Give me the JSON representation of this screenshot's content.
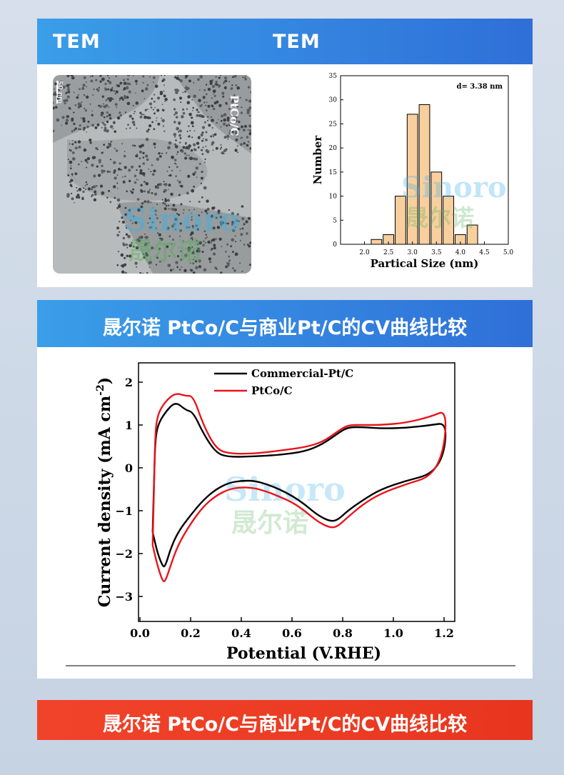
{
  "tem_section": {
    "left_label": "TEM",
    "right_label": "TEM",
    "image_label": "PtCo/C",
    "scale_bar_label": "50 nm"
  },
  "watermark": {
    "text": "Sinoro",
    "subtext": "晟尔诺"
  },
  "cv_section": {
    "title": "晟尔诺 PtCo/C与商业Pt/C的CV曲线比较"
  },
  "footer": {
    "title": "晟尔诺 PtCo/C与商业Pt/C的CV曲线比较"
  },
  "colors": {
    "blue_banner": "#2f6fd8",
    "red_banner": "#e8361e",
    "histogram_bar": "#f9cf9e",
    "commercial_line": "#000000",
    "ptco_line": "#e8141c"
  },
  "chart_data": [
    {
      "type": "bar",
      "title": "",
      "annotation": "d= 3.38 nm",
      "xlabel": "Partical Size (nm)",
      "ylabel": "Number",
      "xlim": [
        1.5,
        5.0
      ],
      "ylim": [
        0,
        35
      ],
      "x_ticks": [
        "2.0",
        "2.5",
        "3.0",
        "3.5",
        "4.0",
        "4.5",
        "5.0"
      ],
      "y_ticks": [
        "0",
        "5",
        "10",
        "15",
        "20",
        "25",
        "30",
        "35"
      ],
      "bin_width": 0.25,
      "x": [
        2.125,
        2.375,
        2.625,
        2.875,
        3.125,
        3.375,
        3.625,
        3.875,
        4.125,
        4.375
      ],
      "values": [
        1,
        2,
        10,
        27,
        29,
        15,
        10,
        2,
        4,
        0
      ],
      "bars_x": [
        2.25,
        2.5,
        2.75,
        3.0,
        3.25,
        3.5,
        3.75,
        4.0,
        4.25,
        4.5
      ],
      "bars_values": [
        1,
        2,
        10,
        27,
        29,
        15,
        10,
        2,
        4
      ]
    },
    {
      "type": "line",
      "title": "",
      "xlabel": "Potential (V.RHE)",
      "ylabel": "Current density",
      "ylabel_unit": "(mA cm",
      "ylabel_exp": "-2",
      "ylabel_close": ")",
      "xlim": [
        0.0,
        1.2
      ],
      "ylim": [
        -3.5,
        2.5
      ],
      "x_ticks": [
        "0.0",
        "0.2",
        "0.4",
        "0.6",
        "0.8",
        "1.0",
        "1.2"
      ],
      "y_ticks": [
        "2",
        "1",
        "0",
        "−1",
        "−2",
        "−3"
      ],
      "legend_position": "top-left",
      "series": [
        {
          "name": "Commercial-Pt/C",
          "color": "#000000",
          "points": [
            [
              0.05,
              -1.5
            ],
            [
              0.07,
              -2.0
            ],
            [
              0.09,
              -2.3
            ],
            [
              0.1,
              -2.3
            ],
            [
              0.12,
              -1.9
            ],
            [
              0.15,
              -1.5
            ],
            [
              0.2,
              -1.1
            ],
            [
              0.25,
              -0.75
            ],
            [
              0.3,
              -0.5
            ],
            [
              0.35,
              -0.35
            ],
            [
              0.4,
              -0.3
            ],
            [
              0.45,
              -0.3
            ],
            [
              0.5,
              -0.38
            ],
            [
              0.55,
              -0.5
            ],
            [
              0.6,
              -0.65
            ],
            [
              0.65,
              -0.85
            ],
            [
              0.7,
              -1.1
            ],
            [
              0.75,
              -1.25
            ],
            [
              0.78,
              -1.22
            ],
            [
              0.82,
              -1.0
            ],
            [
              0.88,
              -0.75
            ],
            [
              0.95,
              -0.5
            ],
            [
              1.05,
              -0.3
            ],
            [
              1.15,
              -0.15
            ],
            [
              1.2,
              0.3
            ],
            [
              1.21,
              1.05
            ],
            [
              1.15,
              1.0
            ],
            [
              1.05,
              0.93
            ],
            [
              0.95,
              0.92
            ],
            [
              0.88,
              0.95
            ],
            [
              0.82,
              0.95
            ],
            [
              0.78,
              0.8
            ],
            [
              0.72,
              0.55
            ],
            [
              0.65,
              0.38
            ],
            [
              0.55,
              0.3
            ],
            [
              0.45,
              0.27
            ],
            [
              0.35,
              0.25
            ],
            [
              0.3,
              0.35
            ],
            [
              0.25,
              0.8
            ],
            [
              0.21,
              1.3
            ],
            [
              0.18,
              1.35
            ],
            [
              0.14,
              1.55
            ],
            [
              0.1,
              1.3
            ],
            [
              0.07,
              1.0
            ],
            [
              0.06,
              0.6
            ],
            [
              0.055,
              -0.5
            ],
            [
              0.05,
              -1.5
            ]
          ]
        },
        {
          "name": "PtCo/C",
          "color": "#e8141c",
          "points": [
            [
              0.05,
              -1.8
            ],
            [
              0.07,
              -2.3
            ],
            [
              0.09,
              -2.65
            ],
            [
              0.1,
              -2.65
            ],
            [
              0.12,
              -2.3
            ],
            [
              0.15,
              -1.8
            ],
            [
              0.2,
              -1.3
            ],
            [
              0.25,
              -0.9
            ],
            [
              0.3,
              -0.65
            ],
            [
              0.35,
              -0.5
            ],
            [
              0.4,
              -0.45
            ],
            [
              0.45,
              -0.47
            ],
            [
              0.5,
              -0.55
            ],
            [
              0.55,
              -0.67
            ],
            [
              0.6,
              -0.8
            ],
            [
              0.65,
              -1.0
            ],
            [
              0.7,
              -1.25
            ],
            [
              0.75,
              -1.4
            ],
            [
              0.78,
              -1.37
            ],
            [
              0.82,
              -1.15
            ],
            [
              0.88,
              -0.85
            ],
            [
              0.95,
              -0.6
            ],
            [
              1.05,
              -0.38
            ],
            [
              1.15,
              -0.2
            ],
            [
              1.2,
              0.4
            ],
            [
              1.21,
              1.35
            ],
            [
              1.15,
              1.2
            ],
            [
              1.05,
              1.05
            ],
            [
              0.95,
              1.0
            ],
            [
              0.88,
              1.0
            ],
            [
              0.82,
              1.0
            ],
            [
              0.78,
              0.85
            ],
            [
              0.72,
              0.6
            ],
            [
              0.65,
              0.48
            ],
            [
              0.55,
              0.4
            ],
            [
              0.45,
              0.33
            ],
            [
              0.35,
              0.33
            ],
            [
              0.3,
              0.45
            ],
            [
              0.25,
              1.0
            ],
            [
              0.21,
              1.68
            ],
            [
              0.18,
              1.68
            ],
            [
              0.14,
              1.75
            ],
            [
              0.1,
              1.55
            ],
            [
              0.07,
              1.25
            ],
            [
              0.06,
              0.8
            ],
            [
              0.055,
              -0.7
            ],
            [
              0.05,
              -1.8
            ]
          ]
        }
      ]
    }
  ]
}
